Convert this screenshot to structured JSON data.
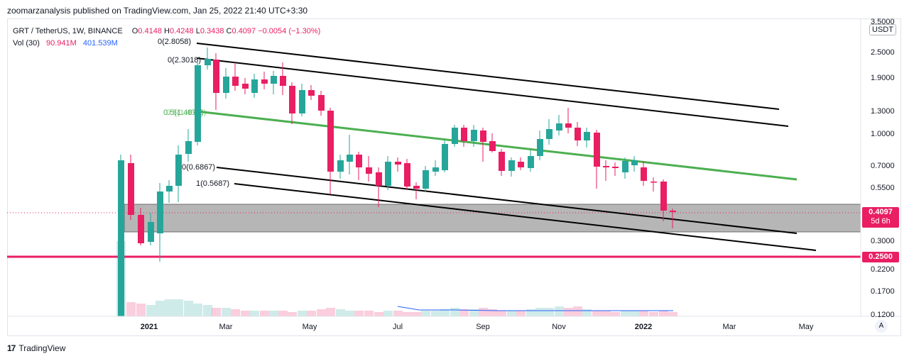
{
  "publish_info": "zoomarzanalysis published on TradingView.com, Jan 25, 2022 21:40 UTC+3:30",
  "legend": {
    "symbol": "GRT / TetherUS, 1W, BINANCE",
    "open_label": "O",
    "open": "0.4148",
    "high_label": "H",
    "high": "0.4248",
    "low_label": "L",
    "low": "0.3438",
    "close_label": "C",
    "close": "0.4097",
    "change": "−0.0054 (−1.30%)",
    "volume_label": "Vol (30)",
    "volume": "90.941M",
    "volume_ma": "401.539M"
  },
  "currency": "USDT",
  "last_price": {
    "value": "0.4097",
    "countdown": "5d 6h",
    "color": "#e91e63"
  },
  "support_level": {
    "value": "0.2500",
    "color": "#e91e63"
  },
  "price_axis": [
    "3.5000",
    "2.5000",
    "1.9000",
    "1.3000",
    "1.0000",
    "0.7000",
    "0.5500",
    "0.3000",
    "0.2200",
    "0.1700",
    "0.1200"
  ],
  "time_axis": [
    "2021",
    "Mar",
    "May",
    "Jul",
    "Sep",
    "Nov",
    "2022",
    "Mar",
    "May"
  ],
  "fib_labels": [
    "0(2.8058)",
    "0(2.3018)",
    "0.5(1.4872)",
    "0.5(1.4872)",
    "0(0.6867)",
    "1(0.5687)"
  ],
  "auto_scale_button": "A",
  "logo_text": "TradingView",
  "colors": {
    "up": "#26a69a",
    "down": "#e91e63",
    "channel": "#000000",
    "midline": "#4caf50",
    "zone": "#b2b2b2"
  }
}
